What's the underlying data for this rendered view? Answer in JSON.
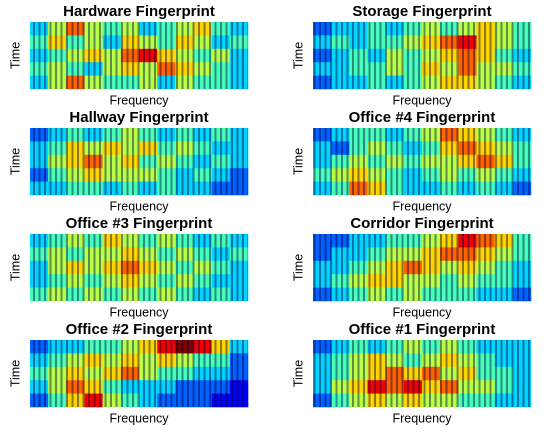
{
  "chart_data": [
    {
      "type": "heatmap",
      "title": "Hardware Fingerprint",
      "xlabel": "Frequency",
      "ylabel": "Time",
      "colormap": "jet",
      "zlim": [
        0,
        9
      ],
      "values": [
        [
          3,
          5,
          7,
          5,
          4,
          5,
          3,
          4,
          5,
          6,
          4,
          3
        ],
        [
          4,
          6,
          4,
          5,
          3,
          6,
          5,
          4,
          6,
          5,
          3,
          4
        ],
        [
          3,
          4,
          5,
          6,
          5,
          7,
          8,
          6,
          5,
          4,
          5,
          3
        ],
        [
          4,
          5,
          4,
          3,
          5,
          6,
          5,
          7,
          6,
          5,
          4,
          3
        ],
        [
          3,
          5,
          7,
          5,
          4,
          4,
          5,
          3,
          5,
          4,
          4,
          3
        ]
      ]
    },
    {
      "type": "heatmap",
      "title": "Storage Fingerprint",
      "xlabel": "Frequency",
      "ylabel": "Time",
      "colormap": "jet",
      "zlim": [
        0,
        9
      ],
      "values": [
        [
          2,
          3,
          3,
          4,
          3,
          4,
          5,
          4,
          5,
          6,
          5,
          4
        ],
        [
          3,
          4,
          3,
          4,
          4,
          5,
          6,
          7,
          8,
          6,
          5,
          4
        ],
        [
          2,
          3,
          4,
          3,
          5,
          4,
          5,
          6,
          7,
          6,
          4,
          3
        ],
        [
          3,
          3,
          4,
          4,
          5,
          4,
          6,
          5,
          7,
          5,
          5,
          4
        ],
        [
          2,
          3,
          3,
          4,
          3,
          4,
          5,
          6,
          6,
          5,
          4,
          3
        ]
      ]
    },
    {
      "type": "heatmap",
      "title": "Hallway Fingerprint",
      "xlabel": "Frequency",
      "ylabel": "Time",
      "colormap": "jet",
      "zlim": [
        0,
        9
      ],
      "values": [
        [
          2,
          3,
          4,
          3,
          4,
          5,
          4,
          3,
          4,
          3,
          4,
          3
        ],
        [
          3,
          4,
          6,
          5,
          6,
          5,
          6,
          4,
          5,
          4,
          3,
          3
        ],
        [
          3,
          5,
          6,
          7,
          5,
          6,
          4,
          5,
          4,
          3,
          4,
          3
        ],
        [
          2,
          4,
          5,
          6,
          5,
          5,
          5,
          4,
          3,
          4,
          3,
          2
        ],
        [
          3,
          3,
          4,
          4,
          3,
          4,
          3,
          4,
          3,
          3,
          2,
          2
        ]
      ]
    },
    {
      "type": "heatmap",
      "title": "Office #4 Fingerprint",
      "xlabel": "Frequency",
      "ylabel": "Time",
      "colormap": "jet",
      "zlim": [
        0,
        9
      ],
      "values": [
        [
          2,
          3,
          4,
          4,
          3,
          4,
          5,
          7,
          6,
          5,
          4,
          3
        ],
        [
          3,
          2,
          4,
          5,
          4,
          3,
          4,
          6,
          7,
          6,
          5,
          4
        ],
        [
          3,
          4,
          5,
          4,
          5,
          4,
          5,
          5,
          6,
          7,
          6,
          4
        ],
        [
          4,
          5,
          6,
          5,
          4,
          3,
          4,
          5,
          4,
          5,
          4,
          3
        ],
        [
          3,
          4,
          7,
          6,
          4,
          3,
          3,
          4,
          3,
          4,
          3,
          2
        ]
      ]
    },
    {
      "type": "heatmap",
      "title": "Office #3 Fingerprint",
      "xlabel": "Frequency",
      "ylabel": "Time",
      "colormap": "jet",
      "zlim": [
        0,
        9
      ],
      "values": [
        [
          3,
          4,
          5,
          4,
          6,
          5,
          4,
          5,
          4,
          3,
          4,
          3
        ],
        [
          4,
          5,
          4,
          5,
          5,
          6,
          5,
          4,
          5,
          4,
          3,
          4
        ],
        [
          3,
          5,
          6,
          5,
          6,
          7,
          6,
          5,
          4,
          5,
          4,
          3
        ],
        [
          3,
          4,
          5,
          4,
          5,
          6,
          5,
          4,
          5,
          4,
          3,
          3
        ],
        [
          4,
          5,
          4,
          5,
          4,
          5,
          4,
          5,
          4,
          3,
          4,
          3
        ]
      ]
    },
    {
      "type": "heatmap",
      "title": "Corridor Fingerprint",
      "xlabel": "Frequency",
      "ylabel": "Time",
      "colormap": "jet",
      "zlim": [
        0,
        9
      ],
      "values": [
        [
          2,
          2,
          3,
          3,
          4,
          4,
          5,
          6,
          8,
          7,
          6,
          4
        ],
        [
          2,
          3,
          3,
          4,
          5,
          5,
          6,
          7,
          7,
          6,
          5,
          4
        ],
        [
          3,
          3,
          4,
          5,
          6,
          7,
          6,
          5,
          6,
          5,
          4,
          3
        ],
        [
          3,
          4,
          5,
          6,
          6,
          5,
          5,
          4,
          5,
          4,
          4,
          3
        ],
        [
          2,
          3,
          4,
          5,
          4,
          5,
          4,
          4,
          4,
          3,
          3,
          2
        ]
      ]
    },
    {
      "type": "heatmap",
      "title": "Office #2 Fingerprint",
      "xlabel": "Frequency",
      "ylabel": "Time",
      "colormap": "jet",
      "zlim": [
        0,
        9
      ],
      "values": [
        [
          2,
          3,
          3,
          4,
          4,
          5,
          6,
          8,
          9,
          8,
          6,
          3
        ],
        [
          3,
          4,
          5,
          6,
          5,
          6,
          5,
          6,
          5,
          4,
          4,
          2
        ],
        [
          4,
          5,
          6,
          5,
          6,
          7,
          5,
          4,
          4,
          3,
          3,
          2
        ],
        [
          3,
          5,
          7,
          6,
          4,
          3,
          3,
          3,
          2,
          2,
          2,
          1
        ],
        [
          2,
          4,
          6,
          8,
          5,
          4,
          3,
          2,
          2,
          2,
          1,
          1
        ]
      ]
    },
    {
      "type": "heatmap",
      "title": "Office #1 Fingerprint",
      "xlabel": "Frequency",
      "ylabel": "Time",
      "colormap": "jet",
      "zlim": [
        0,
        9
      ],
      "values": [
        [
          2,
          3,
          4,
          3,
          4,
          5,
          4,
          5,
          4,
          3,
          3,
          3
        ],
        [
          3,
          4,
          5,
          6,
          5,
          4,
          5,
          6,
          5,
          4,
          3,
          3
        ],
        [
          3,
          4,
          5,
          6,
          7,
          6,
          7,
          5,
          6,
          4,
          4,
          3
        ],
        [
          3,
          5,
          6,
          8,
          7,
          8,
          6,
          7,
          5,
          5,
          4,
          3
        ],
        [
          2,
          4,
          5,
          6,
          5,
          6,
          5,
          5,
          4,
          4,
          3,
          3
        ]
      ]
    }
  ]
}
